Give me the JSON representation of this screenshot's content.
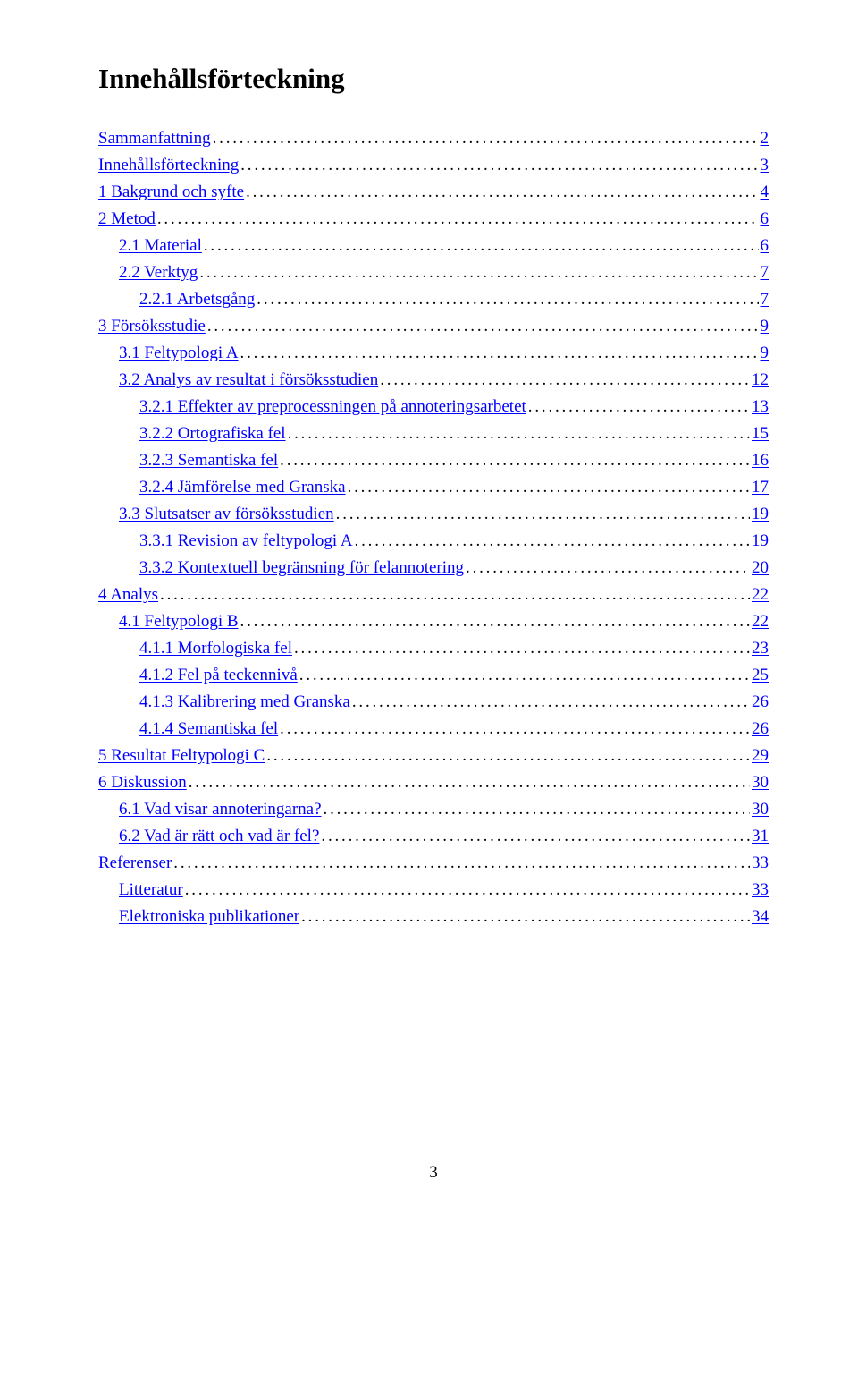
{
  "title": "Innehållsförteckning",
  "page_number": "3",
  "link_color": "#0000ff",
  "text_color": "#000000",
  "background_color": "#ffffff",
  "title_fontsize": 31,
  "body_fontsize": 19,
  "toc": [
    {
      "label": "Sammanfattning",
      "page": "2",
      "indent": 0
    },
    {
      "label": "Innehållsförteckning",
      "page": "3",
      "indent": 0
    },
    {
      "label": "1 Bakgrund och syfte",
      "page": "4",
      "indent": 0
    },
    {
      "label": "2 Metod",
      "page": "6",
      "indent": 0
    },
    {
      "label": "2.1 Material",
      "page": "6",
      "indent": 1
    },
    {
      "label": "2.2 Verktyg",
      "page": "7",
      "indent": 1
    },
    {
      "label": "2.2.1 Arbetsgång",
      "page": "7",
      "indent": 2
    },
    {
      "label": "3 Försöksstudie",
      "page": "9",
      "indent": 0
    },
    {
      "label": "3.1 Feltypologi A",
      "page": "9",
      "indent": 1
    },
    {
      "label": "3.2 Analys av resultat i försöksstudien",
      "page": "12",
      "indent": 1
    },
    {
      "label": "3.2.1 Effekter av preprocessningen på annoteringsarbetet",
      "page": "13",
      "indent": 2
    },
    {
      "label": "3.2.2 Ortografiska fel",
      "page": "15",
      "indent": 2
    },
    {
      "label": "3.2.3 Semantiska fel",
      "page": "16",
      "indent": 2
    },
    {
      "label": "3.2.4 Jämförelse med Granska",
      "page": "17",
      "indent": 2
    },
    {
      "label": "3.3 Slutsatser av försöksstudien",
      "page": "19",
      "indent": 1
    },
    {
      "label": "3.3.1 Revision av feltypologi A",
      "page": "19",
      "indent": 2
    },
    {
      "label": "3.3.2 Kontextuell begränsning för felannotering",
      "page": "20",
      "indent": 2
    },
    {
      "label": "4 Analys",
      "page": "22",
      "indent": 0
    },
    {
      "label": "4.1 Feltypologi B",
      "page": "22",
      "indent": 1
    },
    {
      "label": "4.1.1 Morfologiska fel",
      "page": "23",
      "indent": 2
    },
    {
      "label": "4.1.2 Fel på teckennivå",
      "page": "25",
      "indent": 2
    },
    {
      "label": "4.1.3 Kalibrering med Granska",
      "page": "26",
      "indent": 2
    },
    {
      "label": "4.1.4 Semantiska fel",
      "page": "26",
      "indent": 2
    },
    {
      "label": "5 Resultat Feltypologi C",
      "page": "29",
      "indent": 0
    },
    {
      "label": "6 Diskussion",
      "page": "30",
      "indent": 0
    },
    {
      "label": "6.1 Vad visar annoteringarna?",
      "page": "30",
      "indent": 1
    },
    {
      "label": "6.2 Vad är rätt och vad är fel?",
      "page": "31",
      "indent": 1
    },
    {
      "label": "Referenser",
      "page": "33",
      "indent": 0
    },
    {
      "label": "Litteratur",
      "page": "33",
      "indent": 1
    },
    {
      "label": "Elektroniska publikationer",
      "page": "34",
      "indent": 1
    }
  ]
}
